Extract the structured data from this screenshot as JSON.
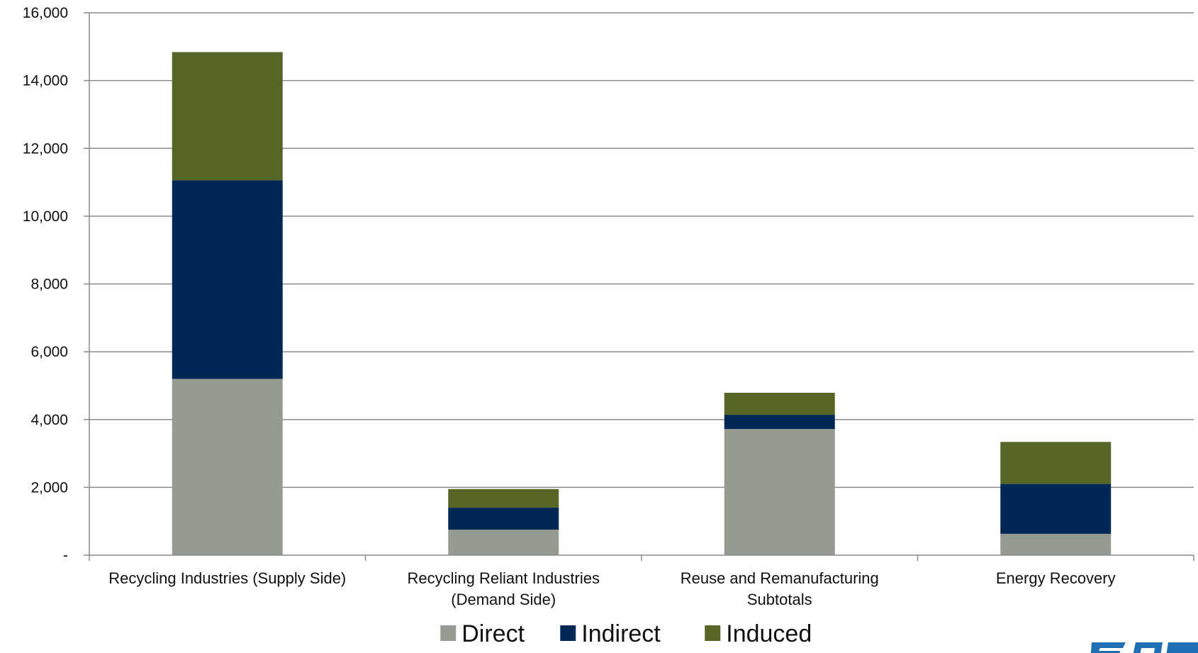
{
  "chart_data": {
    "type": "bar",
    "stacked": true,
    "categories": [
      [
        "Recycling Industries (Supply Side)"
      ],
      [
        "Recycling Reliant Industries",
        "(Demand Side)"
      ],
      [
        "Reuse and Remanufacturing",
        "Subtotals"
      ],
      [
        "Energy Recovery"
      ]
    ],
    "series": [
      {
        "name": "Direct",
        "color": "#969b91",
        "values": [
          5200,
          750,
          3720,
          630
        ]
      },
      {
        "name": "Indirect",
        "color": "#002855",
        "values": [
          5860,
          650,
          420,
          1470
        ]
      },
      {
        "name": "Induced",
        "color": "#556627",
        "values": [
          3780,
          550,
          650,
          1240
        ]
      }
    ],
    "ylim": [
      0,
      16000
    ],
    "yticks": [
      0,
      2000,
      4000,
      6000,
      8000,
      10000,
      12000,
      14000,
      16000
    ],
    "ytick_labels": [
      "-",
      "2,000",
      "4,000",
      "6,000",
      "8,000",
      "10,000",
      "12,000",
      "14,000",
      "16,000"
    ],
    "grid": true,
    "legend_position": "bottom"
  },
  "logo": {
    "color": "#1f6fb5"
  }
}
